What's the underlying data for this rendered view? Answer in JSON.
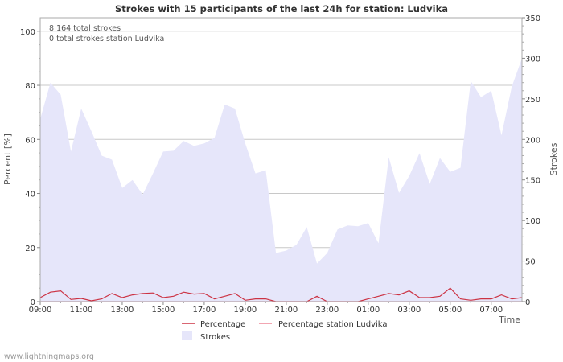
{
  "chart_data": {
    "type": "area",
    "title": "Strokes with 15 participants of the last 24h for station: Ludvika",
    "xlabel": "Time",
    "ylabel_left": "Percent   [%]",
    "ylabel_right": "Strokes",
    "ylim_left": [
      0,
      105
    ],
    "ylim_right": [
      0,
      350
    ],
    "yticks_left": [
      0,
      20,
      40,
      60,
      80,
      100
    ],
    "yticks_right": [
      0,
      50,
      100,
      150,
      200,
      250,
      300,
      350
    ],
    "xtick_labels": [
      "09:00",
      "11:00",
      "13:00",
      "15:00",
      "17:00",
      "19:00",
      "21:00",
      "23:00",
      "01:00",
      "03:00",
      "05:00",
      "07:00"
    ],
    "xtick_hours": [
      0,
      2,
      4,
      6,
      8,
      10,
      12,
      14,
      16,
      18,
      20,
      22
    ],
    "x_hours_range": [
      0,
      23.5
    ],
    "annotations": [
      "8.164 total strokes",
      "0 total strokes station Ludvika"
    ],
    "x_hours": [
      0,
      0.5,
      1,
      1.5,
      2,
      2.5,
      3,
      3.5,
      4,
      4.5,
      5,
      5.5,
      6,
      6.5,
      7,
      7.5,
      8,
      8.5,
      9,
      9.5,
      10,
      10.5,
      11,
      11.5,
      12,
      12.5,
      13,
      13.5,
      14,
      14.5,
      15,
      15.5,
      16,
      16.5,
      17,
      17.5,
      18,
      18.5,
      19,
      19.5,
      20,
      20.5,
      21,
      21.5,
      22,
      22.5,
      23,
      23.5
    ],
    "series": [
      {
        "name": "Strokes",
        "axis": "right",
        "color": "#e6e6fa",
        "values": [
          225,
          270,
          255,
          185,
          238,
          210,
          180,
          175,
          140,
          150,
          132,
          158,
          185,
          186,
          198,
          192,
          195,
          202,
          243,
          238,
          195,
          158,
          162,
          60,
          63,
          70,
          92,
          47,
          60,
          89,
          94,
          93,
          97,
          72,
          178,
          134,
          155,
          183,
          145,
          177,
          160,
          165,
          272,
          252,
          260,
          205,
          265,
          300
        ]
      },
      {
        "name": "Percentage",
        "axis": "left",
        "color": "#cc3344",
        "values": [
          1.5,
          3.5,
          4,
          0.8,
          1.2,
          0.3,
          1,
          3,
          1.5,
          2.5,
          3,
          3.2,
          1.5,
          2,
          3.5,
          2.8,
          3,
          1,
          2,
          3,
          0.5,
          1,
          1,
          0,
          0,
          0,
          0,
          2,
          0,
          0,
          0,
          0,
          1,
          2,
          3,
          2.5,
          4,
          1.5,
          1.5,
          2,
          5,
          1,
          0.5,
          1,
          1,
          2.5,
          1,
          1.5
        ]
      },
      {
        "name": "Percentage station Ludvika",
        "axis": "left",
        "color": "#ee8899",
        "values": [
          0,
          0,
          0,
          0,
          0,
          0,
          0,
          0,
          0,
          0,
          0,
          0,
          0,
          0,
          0,
          0,
          0,
          0,
          0,
          0,
          0,
          0,
          0,
          0,
          0,
          0,
          0,
          0,
          0,
          0,
          0,
          0,
          0,
          0,
          0,
          0,
          0,
          0,
          0,
          0,
          0,
          0,
          0,
          0,
          0,
          0,
          0,
          0
        ]
      }
    ],
    "legend": [
      {
        "label": "Percentage",
        "kind": "line",
        "color": "#cc3344"
      },
      {
        "label": "Percentage station Ludvika",
        "kind": "line",
        "color": "#ee8899"
      },
      {
        "label": "Strokes",
        "kind": "area",
        "color": "#e6e6fa"
      }
    ],
    "legend_position": "bottom",
    "grid": true
  },
  "footer": {
    "watermark": "www.lightningmaps.org"
  }
}
